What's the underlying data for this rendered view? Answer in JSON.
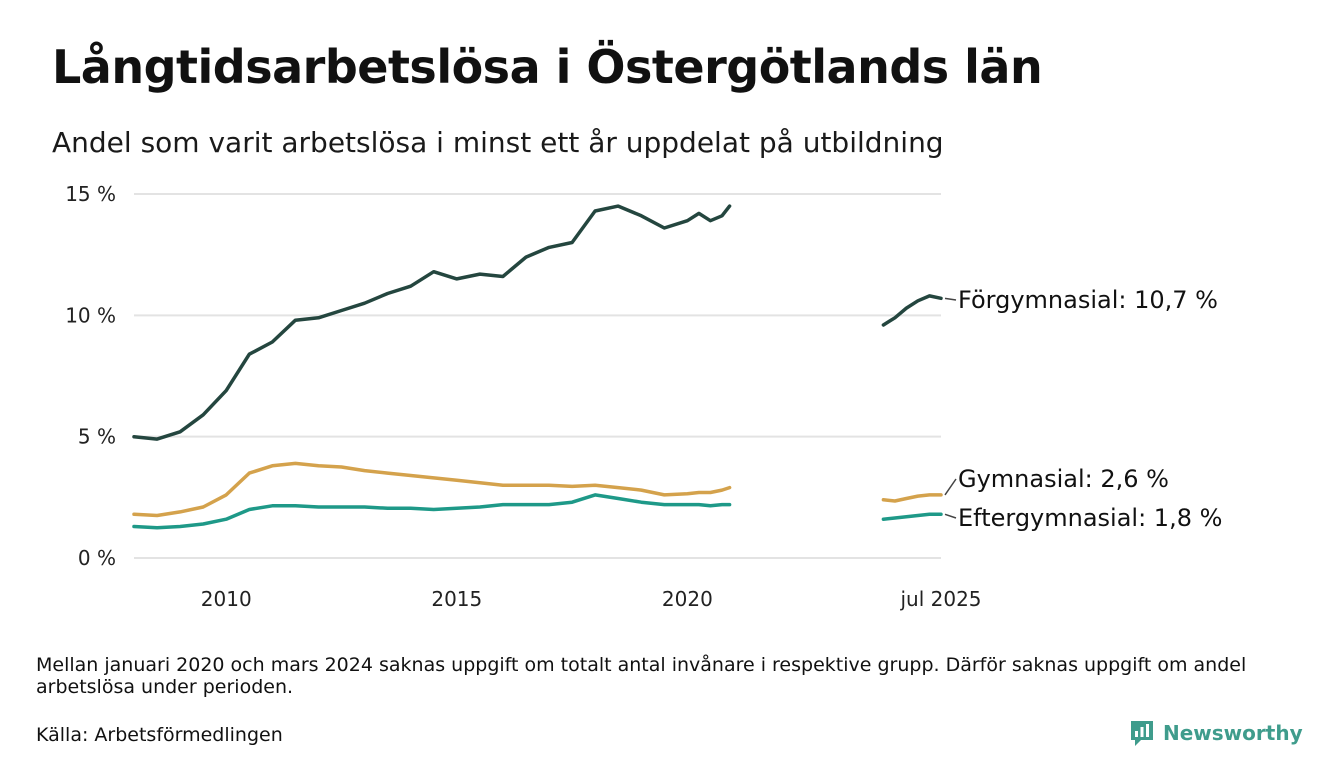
{
  "header": {
    "title": "Långtidsarbetslösa i Östergötlands län",
    "subtitle": "Andel som varit arbetslösa i minst ett år uppdelat på utbildning"
  },
  "footer": {
    "note": "Mellan januari 2020 och mars 2024 saknas uppgift om totalt antal invånare i respektive grupp. Därför saknas uppgift om andel arbetslösa under perioden.",
    "source": "Källa: Arbetsförmedlingen",
    "brand": "Newsworthy"
  },
  "colors": {
    "forgymnasial": "#24463f",
    "gymnasial": "#d4a24c",
    "eftergymnasial": "#1e9988",
    "grid": "#e3e3e3",
    "brand": "#3f9c8c"
  },
  "chart_data": {
    "type": "line",
    "title": "Långtidsarbetslösa i Östergötlands län",
    "subtitle": "Andel som varit arbetslösa i minst ett år uppdelat på utbildning",
    "xlabel": "",
    "ylabel": "",
    "ylim": [
      0,
      15
    ],
    "xlim": [
      "2008-01",
      "2025-07"
    ],
    "y_ticks": [
      0,
      5,
      10,
      15
    ],
    "y_tick_labels": [
      "0 %",
      "5 %",
      "10 %",
      "15 %"
    ],
    "x_ticks": [
      "2010-01",
      "2015-01",
      "2020-01",
      "2025-07"
    ],
    "x_tick_labels": [
      "2010",
      "2015",
      "2020",
      "jul 2025"
    ],
    "grid": true,
    "legend": "end-of-line labels",
    "x": [
      "2008-01",
      "2008-07",
      "2009-01",
      "2009-07",
      "2010-01",
      "2010-07",
      "2011-01",
      "2011-07",
      "2012-01",
      "2012-07",
      "2013-01",
      "2013-07",
      "2014-01",
      "2014-07",
      "2015-01",
      "2015-07",
      "2016-01",
      "2016-07",
      "2017-01",
      "2017-07",
      "2018-01",
      "2018-07",
      "2019-01",
      "2019-07",
      "2020-01",
      "2020-04",
      "2020-07",
      "2020-10",
      "2020-12",
      "2024-04",
      "2024-07",
      "2024-10",
      "2025-01",
      "2025-04",
      "2025-07"
    ],
    "series": [
      {
        "name": "Förgymnasial",
        "end_label": "Förgymnasial: 10,7 %",
        "values": [
          5.0,
          4.9,
          5.2,
          5.9,
          6.9,
          8.4,
          8.9,
          9.8,
          9.9,
          10.2,
          10.5,
          10.9,
          11.2,
          11.8,
          11.5,
          11.7,
          11.6,
          12.4,
          12.8,
          13.0,
          14.3,
          14.5,
          14.1,
          13.6,
          13.9,
          14.2,
          13.9,
          14.1,
          14.5,
          null,
          null,
          null,
          null,
          null,
          null
        ]
      },
      {
        "name": "Förgymnasial",
        "segment": 2,
        "values": [
          null,
          null,
          null,
          null,
          null,
          null,
          null,
          null,
          null,
          null,
          null,
          null,
          null,
          null,
          null,
          null,
          null,
          null,
          null,
          null,
          null,
          null,
          null,
          null,
          null,
          null,
          null,
          null,
          null,
          9.6,
          9.9,
          10.3,
          10.6,
          10.8,
          10.7
        ]
      },
      {
        "name": "Gymnasial",
        "end_label": "Gymnasial:  2,6 %",
        "values": [
          1.8,
          1.75,
          1.9,
          2.1,
          2.6,
          3.5,
          3.8,
          3.9,
          3.8,
          3.75,
          3.6,
          3.5,
          3.4,
          3.3,
          3.2,
          3.1,
          3.0,
          3.0,
          3.0,
          2.95,
          3.0,
          2.9,
          2.8,
          2.6,
          2.65,
          2.7,
          2.7,
          2.8,
          2.9,
          null,
          null,
          null,
          null,
          null,
          null
        ]
      },
      {
        "name": "Gymnasial",
        "segment": 2,
        "values": [
          null,
          null,
          null,
          null,
          null,
          null,
          null,
          null,
          null,
          null,
          null,
          null,
          null,
          null,
          null,
          null,
          null,
          null,
          null,
          null,
          null,
          null,
          null,
          null,
          null,
          null,
          null,
          null,
          null,
          2.4,
          2.35,
          2.45,
          2.55,
          2.6,
          2.6
        ]
      },
      {
        "name": "Eftergymnasial",
        "end_label": "Eftergymnasial:  1,8 %",
        "values": [
          1.3,
          1.25,
          1.3,
          1.4,
          1.6,
          2.0,
          2.15,
          2.15,
          2.1,
          2.1,
          2.1,
          2.05,
          2.05,
          2.0,
          2.05,
          2.1,
          2.2,
          2.2,
          2.2,
          2.3,
          2.6,
          2.45,
          2.3,
          2.2,
          2.2,
          2.2,
          2.15,
          2.2,
          2.2,
          null,
          null,
          null,
          null,
          null,
          null
        ]
      },
      {
        "name": "Eftergymnasial",
        "segment": 2,
        "values": [
          null,
          null,
          null,
          null,
          null,
          null,
          null,
          null,
          null,
          null,
          null,
          null,
          null,
          null,
          null,
          null,
          null,
          null,
          null,
          null,
          null,
          null,
          null,
          null,
          null,
          null,
          null,
          null,
          null,
          1.6,
          1.65,
          1.7,
          1.75,
          1.8,
          1.8
        ]
      }
    ]
  }
}
